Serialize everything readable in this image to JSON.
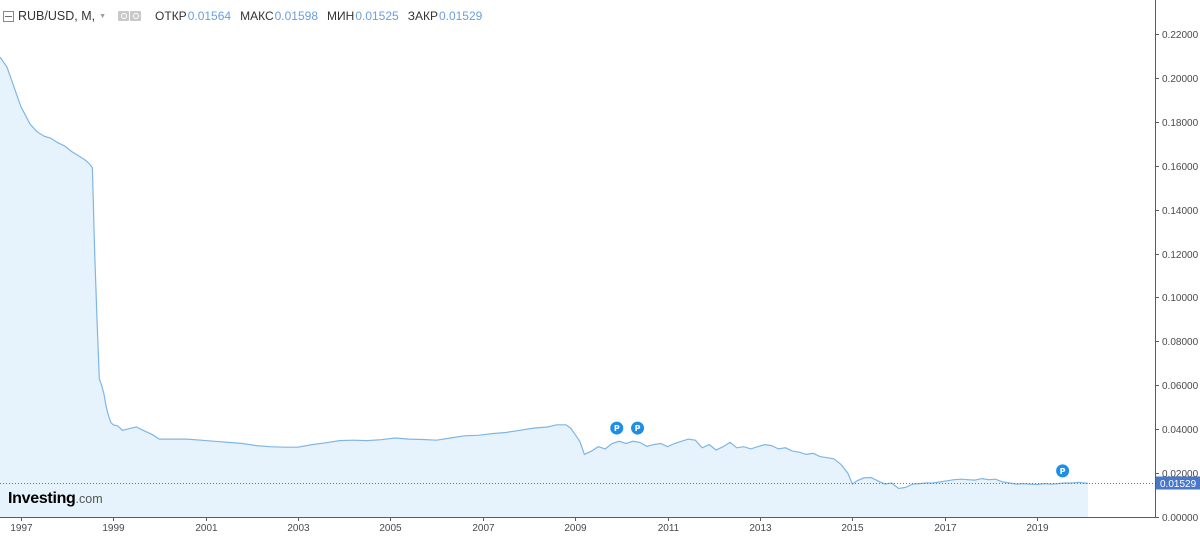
{
  "legend": {
    "symbol": "RUB/USD, M,",
    "open_label": "ОТКР",
    "open_value": "0.01564",
    "high_label": "МАКС",
    "high_value": "0.01598",
    "low_label": "МИН",
    "low_value": "0.01525",
    "close_label": "ЗАКР",
    "close_value": "0.01529"
  },
  "logo": {
    "main": "Investing",
    "sub": ".com"
  },
  "last_price_label": "0.01529",
  "marker_letter": "P",
  "colors": {
    "line": "#7fb6e6",
    "fill": "#e6f3fc",
    "axis": "#5c5c5c",
    "grid": "#ececec",
    "label_box": "#4a78c9",
    "marker": "#1e8fe8",
    "value_text": "#6a9fd8"
  },
  "chart_data": {
    "type": "area",
    "x_label_years": [
      "1997",
      "1999",
      "2001",
      "2003",
      "2005",
      "2007",
      "2009",
      "2011",
      "2013",
      "2015",
      "2017",
      "2019"
    ],
    "y_ticks": [
      "0.22000",
      "0.20000",
      "0.18000",
      "0.16000",
      "0.14000",
      "0.12000",
      "0.10000",
      "0.08000",
      "0.06000",
      "0.04000",
      "0.02000",
      "0.00000"
    ],
    "ylim": [
      0,
      0.22
    ],
    "xlim": [
      1996.55,
      2021.55
    ],
    "last_value": 0.01529,
    "markers": [
      {
        "x": 2009.9,
        "y": 0.0405,
        "label": "P"
      },
      {
        "x": 2010.35,
        "y": 0.0405,
        "label": "P"
      },
      {
        "x": 2019.55,
        "y": 0.021,
        "label": "P"
      }
    ],
    "series": [
      {
        "x": [
          1996.55,
          1996.7,
          1996.8,
          1996.9,
          1997.0,
          1997.1,
          1997.2,
          1997.35,
          1997.5,
          1997.65,
          1997.8,
          1997.95,
          1998.1,
          1998.25,
          1998.4,
          1998.5,
          1998.55,
          1998.6,
          1998.65,
          1998.7,
          1998.75,
          1998.8,
          1998.85,
          1998.9,
          1998.95,
          1999.0,
          1999.1,
          1999.2,
          1999.3,
          1999.4,
          1999.5,
          1999.6,
          1999.7,
          1999.85,
          2000.0,
          2000.3,
          2000.6,
          2000.9,
          2001.2,
          2001.5,
          2001.8,
          2002.1,
          2002.4,
          2002.7,
          2003.0,
          2003.3,
          2003.6,
          2003.9,
          2004.2,
          2004.5,
          2004.8,
          2005.1,
          2005.4,
          2005.7,
          2006.0,
          2006.3,
          2006.6,
          2006.9,
          2007.2,
          2007.5,
          2007.8,
          2008.1,
          2008.4,
          2008.6,
          2008.8,
          2008.9,
          2009.0,
          2009.1,
          2009.2,
          2009.35,
          2009.5,
          2009.65,
          2009.8,
          2009.95,
          2010.1,
          2010.25,
          2010.4,
          2010.55,
          2010.7,
          2010.85,
          2011.0,
          2011.15,
          2011.3,
          2011.45,
          2011.6,
          2011.75,
          2011.9,
          2012.05,
          2012.2,
          2012.35,
          2012.5,
          2012.65,
          2012.8,
          2012.95,
          2013.1,
          2013.25,
          2013.4,
          2013.55,
          2013.7,
          2013.85,
          2014.0,
          2014.15,
          2014.3,
          2014.45,
          2014.6,
          2014.75,
          2014.9,
          2015.0,
          2015.1,
          2015.25,
          2015.4,
          2015.55,
          2015.7,
          2015.85,
          2016.0,
          2016.15,
          2016.3,
          2016.45,
          2016.6,
          2016.75,
          2016.9,
          2017.05,
          2017.2,
          2017.35,
          2017.5,
          2017.65,
          2017.8,
          2017.95,
          2018.1,
          2018.25,
          2018.4,
          2018.55,
          2018.7,
          2018.85,
          2019.0,
          2019.15,
          2019.3,
          2019.45,
          2019.6,
          2019.75,
          2019.9,
          2020.1
        ],
        "y": [
          0.2095,
          0.205,
          0.199,
          0.193,
          0.187,
          0.183,
          0.179,
          0.1755,
          0.1735,
          0.1725,
          0.1705,
          0.169,
          0.1665,
          0.1645,
          0.1625,
          0.1605,
          0.159,
          0.12,
          0.09,
          0.063,
          0.06,
          0.056,
          0.05,
          0.046,
          0.043,
          0.042,
          0.0415,
          0.0395,
          0.04,
          0.0405,
          0.041,
          0.04,
          0.039,
          0.0375,
          0.0355,
          0.0355,
          0.0355,
          0.035,
          0.0345,
          0.034,
          0.0335,
          0.0325,
          0.032,
          0.0318,
          0.0318,
          0.033,
          0.0338,
          0.0348,
          0.035,
          0.0348,
          0.0352,
          0.036,
          0.0355,
          0.0353,
          0.035,
          0.036,
          0.037,
          0.0372,
          0.038,
          0.0385,
          0.0395,
          0.0405,
          0.041,
          0.042,
          0.042,
          0.0405,
          0.0375,
          0.0345,
          0.0285,
          0.03,
          0.032,
          0.031,
          0.0335,
          0.0345,
          0.0335,
          0.0345,
          0.034,
          0.0322,
          0.033,
          0.0335,
          0.032,
          0.0335,
          0.0345,
          0.0355,
          0.035,
          0.0315,
          0.033,
          0.0305,
          0.032,
          0.034,
          0.0315,
          0.032,
          0.031,
          0.032,
          0.033,
          0.0325,
          0.031,
          0.0315,
          0.03,
          0.0295,
          0.0285,
          0.029,
          0.0275,
          0.027,
          0.0265,
          0.024,
          0.02,
          0.015,
          0.0165,
          0.0178,
          0.018,
          0.0165,
          0.015,
          0.0155,
          0.013,
          0.0135,
          0.015,
          0.0152,
          0.0155,
          0.0155,
          0.016,
          0.0165,
          0.017,
          0.0172,
          0.017,
          0.0168,
          0.0175,
          0.017,
          0.0172,
          0.016,
          0.0155,
          0.015,
          0.0152,
          0.015,
          0.0148,
          0.0152,
          0.015,
          0.0152,
          0.0155,
          0.0155,
          0.0158,
          0.0153
        ]
      }
    ]
  }
}
